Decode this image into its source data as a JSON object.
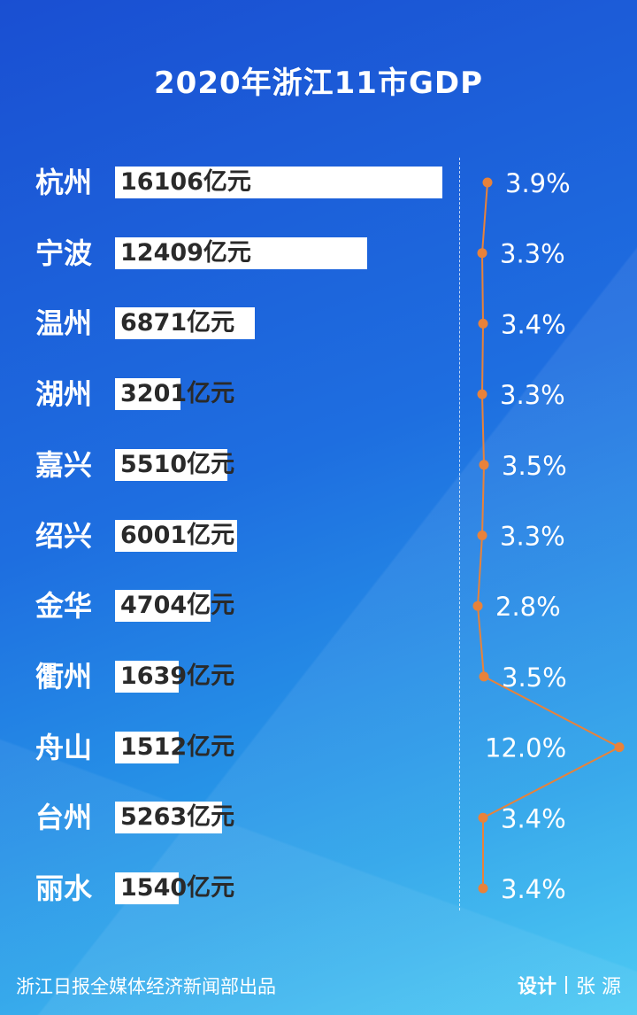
{
  "title": "2020年浙江11市GDP",
  "footer": {
    "source": "浙江日报全媒体经济新闻部出品",
    "design_label": "设计",
    "designer": "张 源"
  },
  "colors": {
    "background_top": "#1a4fd2",
    "background_bottom": "#3fc6f2",
    "bar": "#ffffff",
    "line": "#e8823a"
  },
  "chart_data": {
    "type": "bar",
    "title": "2020年浙江11市GDP",
    "categories": [
      "杭州",
      "宁波",
      "温州",
      "湖州",
      "嘉兴",
      "绍兴",
      "金华",
      "衢州",
      "舟山",
      "台州",
      "丽水"
    ],
    "series": [
      {
        "type": "bar",
        "values": [
          16106,
          12409,
          6871,
          3201,
          5510,
          6001,
          4704,
          1639,
          1512,
          5263,
          1540
        ],
        "labels": [
          "16106亿元",
          "12409亿元",
          "6871亿元",
          "3201亿元",
          "5510亿元",
          "6001亿元",
          "4704亿元",
          "1639亿元",
          "1512亿元",
          "5263亿元",
          "1540亿元"
        ]
      },
      {
        "type": "line",
        "values": [
          3.9,
          3.3,
          3.4,
          3.3,
          3.5,
          3.3,
          2.8,
          3.5,
          12.0,
          3.4,
          3.4
        ],
        "labels": [
          "3.9%",
          "3.3%",
          "3.4%",
          "3.3%",
          "3.5%",
          "3.3%",
          "2.8%",
          "3.5%",
          "12.0%",
          "3.4%",
          "3.4%"
        ]
      }
    ],
    "grid": false,
    "legend": "none"
  }
}
